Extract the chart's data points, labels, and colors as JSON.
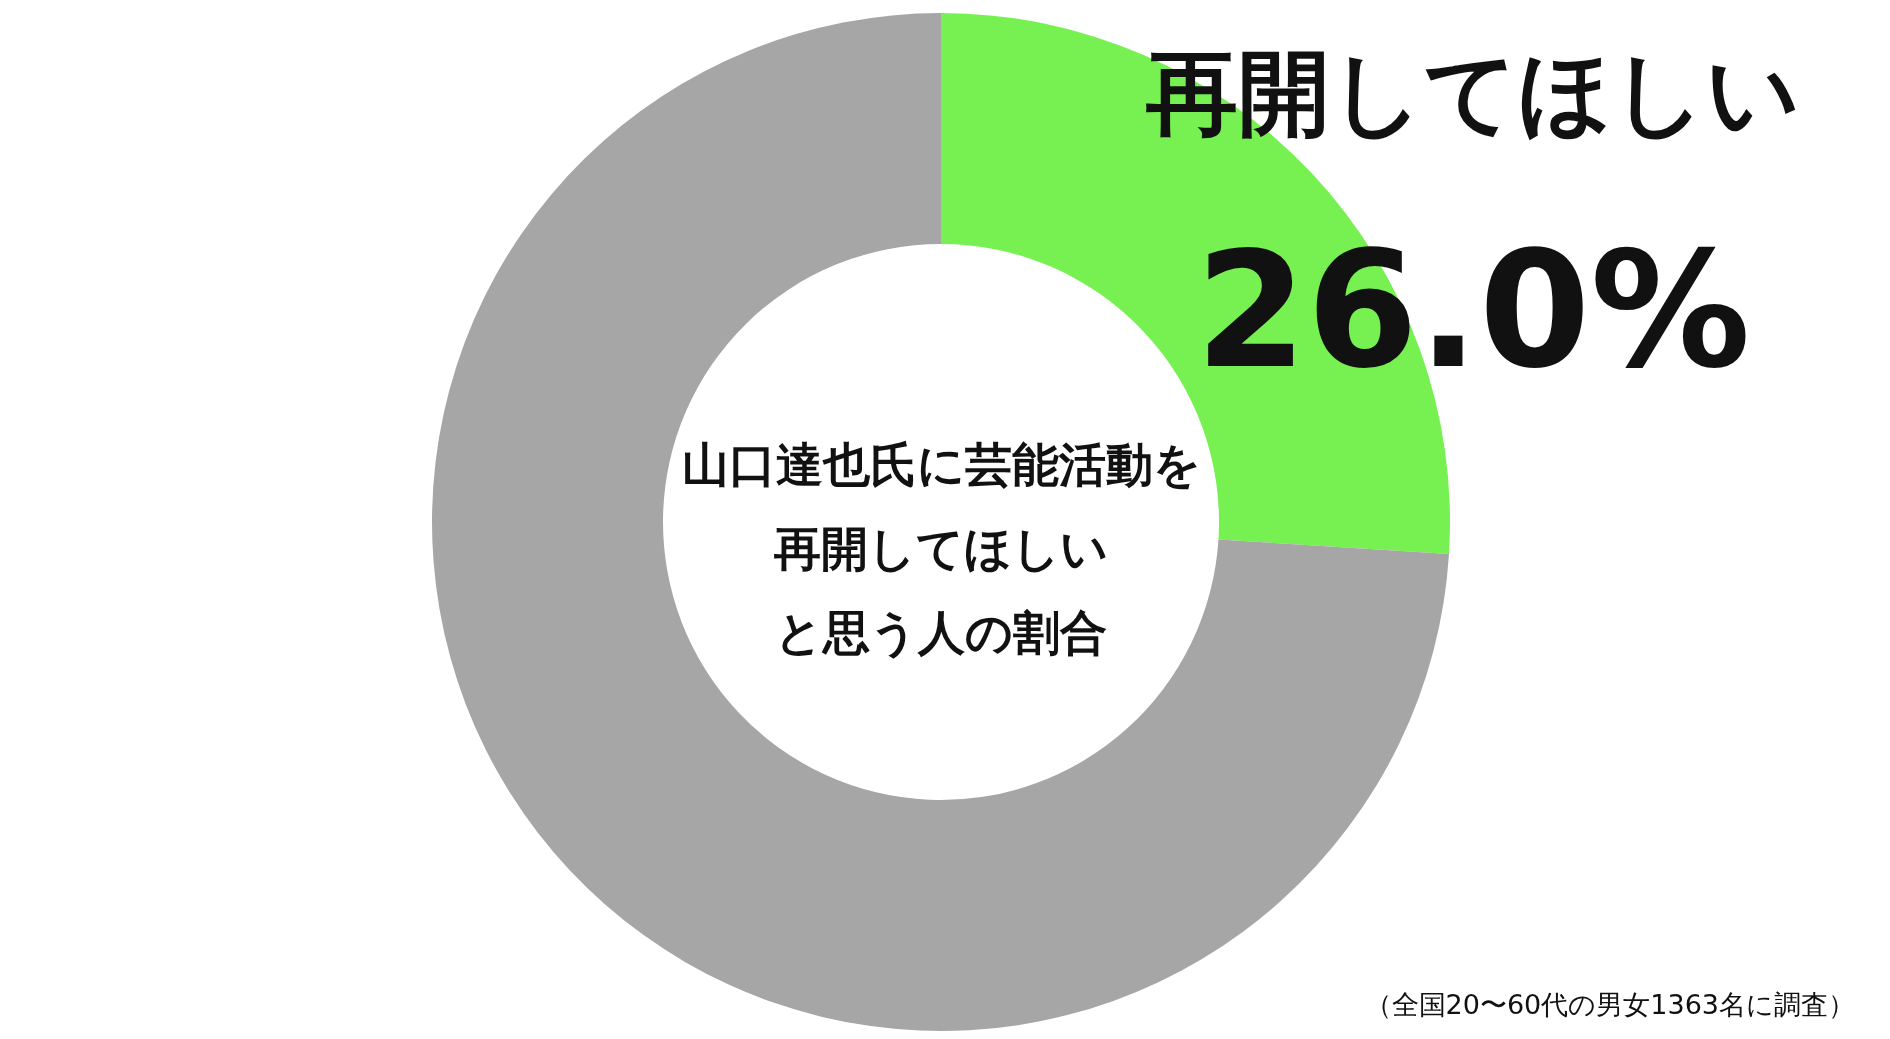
{
  "chart_data": {
    "type": "donut",
    "title": "山口達也氏に芸能活動を再開してほしいと思う人の割合",
    "categories": [
      "再開してほしい",
      null
    ],
    "values": [
      26.0,
      74.0
    ],
    "colors": [
      "#77f152",
      "#a6a6a6"
    ],
    "value_labels": [
      "26.0%",
      null
    ],
    "annotations": [
      "（全国20〜60代の男女1363名に調査）"
    ]
  }
}
